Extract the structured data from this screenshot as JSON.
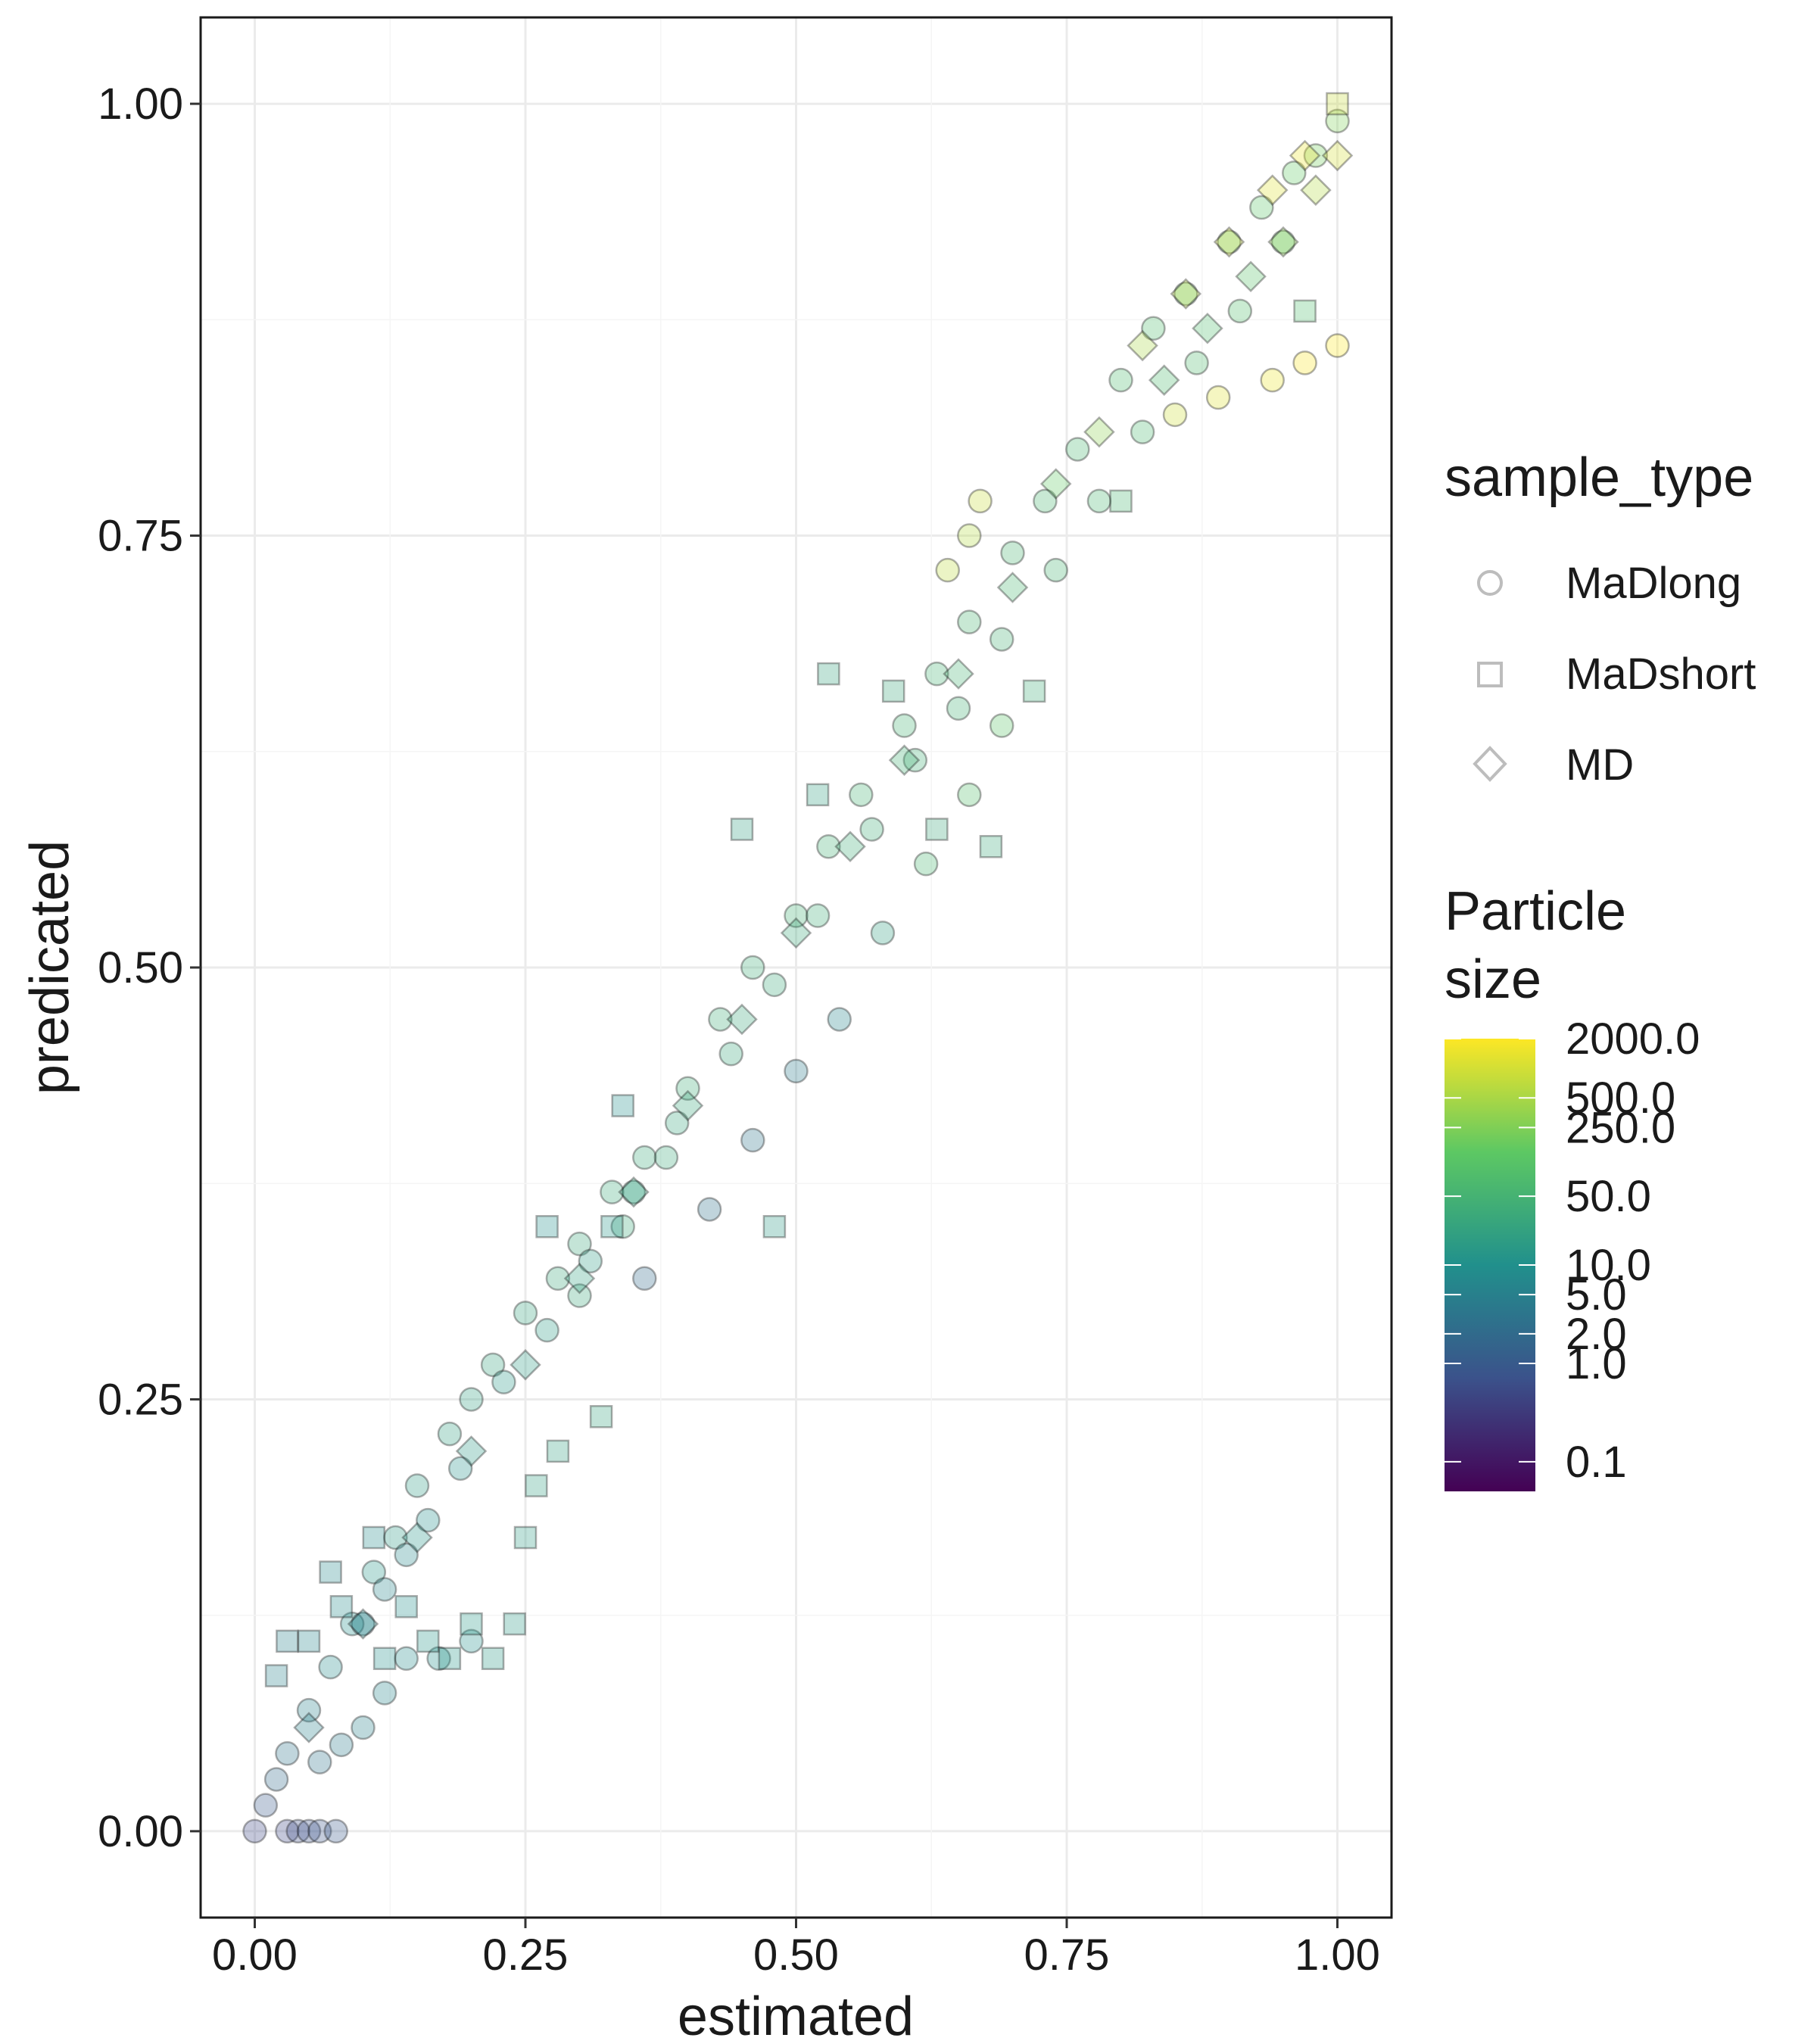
{
  "chart_data": {
    "type": "scatter",
    "title": "",
    "xlabel": "estimated",
    "ylabel": "predicated",
    "xlim": [
      -0.05,
      1.05
    ],
    "ylim": [
      -0.05,
      1.05
    ],
    "x_ticks": [
      "0.00",
      "0.25",
      "0.50",
      "0.75",
      "1.00"
    ],
    "y_ticks": [
      "0.00",
      "0.25",
      "0.50",
      "0.75",
      "1.00"
    ],
    "grid": true,
    "legend_position": "right",
    "shape_legend": {
      "title": "sample_type",
      "entries": [
        "MaDlong",
        "MaDshort",
        "MD"
      ]
    },
    "color_legend": {
      "title_line1": "Particle",
      "title_line2": "size",
      "scale": "log",
      "labels": [
        "2000.0",
        "500.0",
        "250.0",
        "50.0",
        "10.0",
        "5.0",
        "2.0",
        "1.0",
        "0.1"
      ],
      "palette": [
        "#440154",
        "#3b528b",
        "#21908c",
        "#5dc863",
        "#fde725"
      ]
    },
    "series": [
      {
        "name": "MaDlong",
        "shape": "circle",
        "points": [
          [
            0.0,
            0.0,
            0.5
          ],
          [
            0.01,
            0.015,
            1
          ],
          [
            0.02,
            0.03,
            2
          ],
          [
            0.03,
            0.045,
            3
          ],
          [
            0.05,
            0.07,
            5
          ],
          [
            0.07,
            0.095,
            8
          ],
          [
            0.09,
            0.12,
            10
          ],
          [
            0.11,
            0.15,
            12
          ],
          [
            0.13,
            0.17,
            15
          ],
          [
            0.15,
            0.2,
            18
          ],
          [
            0.18,
            0.23,
            20
          ],
          [
            0.2,
            0.25,
            20
          ],
          [
            0.22,
            0.27,
            25
          ],
          [
            0.25,
            0.3,
            25
          ],
          [
            0.28,
            0.32,
            30
          ],
          [
            0.3,
            0.34,
            30
          ],
          [
            0.33,
            0.37,
            35
          ],
          [
            0.36,
            0.39,
            35
          ],
          [
            0.4,
            0.43,
            40
          ],
          [
            0.43,
            0.47,
            40
          ],
          [
            0.46,
            0.5,
            40
          ],
          [
            0.5,
            0.53,
            45
          ],
          [
            0.53,
            0.57,
            45
          ],
          [
            0.56,
            0.6,
            50
          ],
          [
            0.6,
            0.64,
            50
          ],
          [
            0.63,
            0.67,
            50
          ],
          [
            0.66,
            0.7,
            55
          ],
          [
            0.7,
            0.74,
            55
          ],
          [
            0.73,
            0.77,
            60
          ],
          [
            0.76,
            0.8,
            60
          ],
          [
            0.8,
            0.84,
            70
          ],
          [
            0.83,
            0.87,
            80
          ],
          [
            0.86,
            0.89,
            90
          ],
          [
            0.9,
            0.92,
            100
          ],
          [
            0.93,
            0.94,
            120
          ],
          [
            0.96,
            0.96,
            150
          ],
          [
            0.98,
            0.97,
            200
          ],
          [
            1.0,
            0.99,
            250
          ],
          [
            0.1,
            0.12,
            4
          ],
          [
            0.12,
            0.14,
            6
          ],
          [
            0.14,
            0.16,
            7
          ],
          [
            0.16,
            0.18,
            9
          ],
          [
            0.19,
            0.21,
            11
          ],
          [
            0.23,
            0.26,
            14
          ],
          [
            0.27,
            0.29,
            16
          ],
          [
            0.31,
            0.33,
            18
          ],
          [
            0.35,
            0.37,
            22
          ],
          [
            0.39,
            0.41,
            26
          ],
          [
            0.44,
            0.45,
            28
          ],
          [
            0.48,
            0.49,
            32
          ],
          [
            0.52,
            0.53,
            36
          ],
          [
            0.57,
            0.58,
            38
          ],
          [
            0.61,
            0.62,
            42
          ],
          [
            0.65,
            0.65,
            44
          ],
          [
            0.69,
            0.69,
            48
          ],
          [
            0.74,
            0.73,
            52
          ],
          [
            0.78,
            0.77,
            58
          ],
          [
            0.82,
            0.81,
            65
          ],
          [
            0.87,
            0.85,
            75
          ],
          [
            0.91,
            0.88,
            85
          ],
          [
            0.95,
            0.92,
            110
          ],
          [
            0.03,
            0.0,
            0.5
          ],
          [
            0.04,
            0.0,
            0.6
          ],
          [
            0.05,
            0.0,
            0.7
          ],
          [
            0.06,
            0.0,
            0.8
          ],
          [
            0.075,
            0.0,
            0.9
          ],
          [
            0.06,
            0.04,
            3
          ],
          [
            0.08,
            0.05,
            4
          ],
          [
            0.1,
            0.06,
            5
          ],
          [
            0.12,
            0.08,
            6
          ],
          [
            0.14,
            0.1,
            8
          ],
          [
            0.17,
            0.1,
            9
          ],
          [
            0.2,
            0.11,
            10
          ],
          [
            0.36,
            0.32,
            2
          ],
          [
            0.42,
            0.36,
            2.5
          ],
          [
            0.46,
            0.4,
            3
          ],
          [
            0.5,
            0.44,
            4
          ],
          [
            0.54,
            0.47,
            6
          ],
          [
            0.58,
            0.52,
            20
          ],
          [
            0.62,
            0.56,
            60
          ],
          [
            0.66,
            0.6,
            90
          ],
          [
            0.69,
            0.64,
            120
          ],
          [
            0.66,
            0.75,
            600
          ],
          [
            0.67,
            0.77,
            800
          ],
          [
            0.64,
            0.73,
            700
          ],
          [
            0.85,
            0.82,
            900
          ],
          [
            0.89,
            0.83,
            1200
          ],
          [
            0.94,
            0.84,
            1500
          ],
          [
            0.97,
            0.85,
            1800
          ],
          [
            1.0,
            0.86,
            2000
          ],
          [
            0.3,
            0.31,
            30
          ],
          [
            0.34,
            0.35,
            33
          ],
          [
            0.38,
            0.39,
            34
          ]
        ]
      },
      {
        "name": "MaDshort",
        "shape": "square",
        "points": [
          [
            0.02,
            0.09,
            5
          ],
          [
            0.03,
            0.11,
            5
          ],
          [
            0.05,
            0.11,
            6
          ],
          [
            0.07,
            0.15,
            7
          ],
          [
            0.08,
            0.13,
            8
          ],
          [
            0.11,
            0.17,
            8
          ],
          [
            0.12,
            0.1,
            10
          ],
          [
            0.14,
            0.13,
            10
          ],
          [
            0.16,
            0.11,
            12
          ],
          [
            0.18,
            0.1,
            12
          ],
          [
            0.2,
            0.12,
            14
          ],
          [
            0.22,
            0.1,
            15
          ],
          [
            0.24,
            0.12,
            15
          ],
          [
            0.25,
            0.17,
            18
          ],
          [
            0.26,
            0.2,
            20
          ],
          [
            0.28,
            0.22,
            20
          ],
          [
            0.32,
            0.24,
            25
          ],
          [
            0.34,
            0.42,
            10
          ],
          [
            0.27,
            0.35,
            10
          ],
          [
            0.33,
            0.35,
            12
          ],
          [
            0.48,
            0.35,
            15
          ],
          [
            0.45,
            0.58,
            20
          ],
          [
            0.52,
            0.6,
            20
          ],
          [
            0.53,
            0.67,
            25
          ],
          [
            0.59,
            0.66,
            30
          ],
          [
            0.63,
            0.58,
            30
          ],
          [
            0.68,
            0.57,
            35
          ],
          [
            0.72,
            0.66,
            40
          ],
          [
            0.8,
            0.77,
            60
          ],
          [
            0.97,
            0.88,
            80
          ],
          [
            1.0,
            1.0,
            800
          ]
        ]
      },
      {
        "name": "MD",
        "shape": "diamond",
        "points": [
          [
            0.05,
            0.06,
            5
          ],
          [
            0.1,
            0.12,
            8
          ],
          [
            0.15,
            0.17,
            12
          ],
          [
            0.2,
            0.22,
            15
          ],
          [
            0.25,
            0.27,
            18
          ],
          [
            0.3,
            0.32,
            22
          ],
          [
            0.35,
            0.37,
            25
          ],
          [
            0.4,
            0.42,
            28
          ],
          [
            0.45,
            0.47,
            30
          ],
          [
            0.5,
            0.52,
            35
          ],
          [
            0.55,
            0.57,
            40
          ],
          [
            0.6,
            0.62,
            45
          ],
          [
            0.65,
            0.67,
            50
          ],
          [
            0.7,
            0.72,
            60
          ],
          [
            0.74,
            0.78,
            150
          ],
          [
            0.78,
            0.81,
            300
          ],
          [
            0.82,
            0.86,
            500
          ],
          [
            0.86,
            0.89,
            700
          ],
          [
            0.9,
            0.92,
            900
          ],
          [
            0.94,
            0.95,
            1200
          ],
          [
            0.97,
            0.97,
            1500
          ],
          [
            0.92,
            0.9,
            100
          ],
          [
            0.95,
            0.92,
            300
          ],
          [
            0.98,
            0.95,
            600
          ],
          [
            1.0,
            0.97,
            1000
          ],
          [
            0.88,
            0.87,
            80
          ],
          [
            0.84,
            0.84,
            70
          ]
        ]
      }
    ]
  }
}
